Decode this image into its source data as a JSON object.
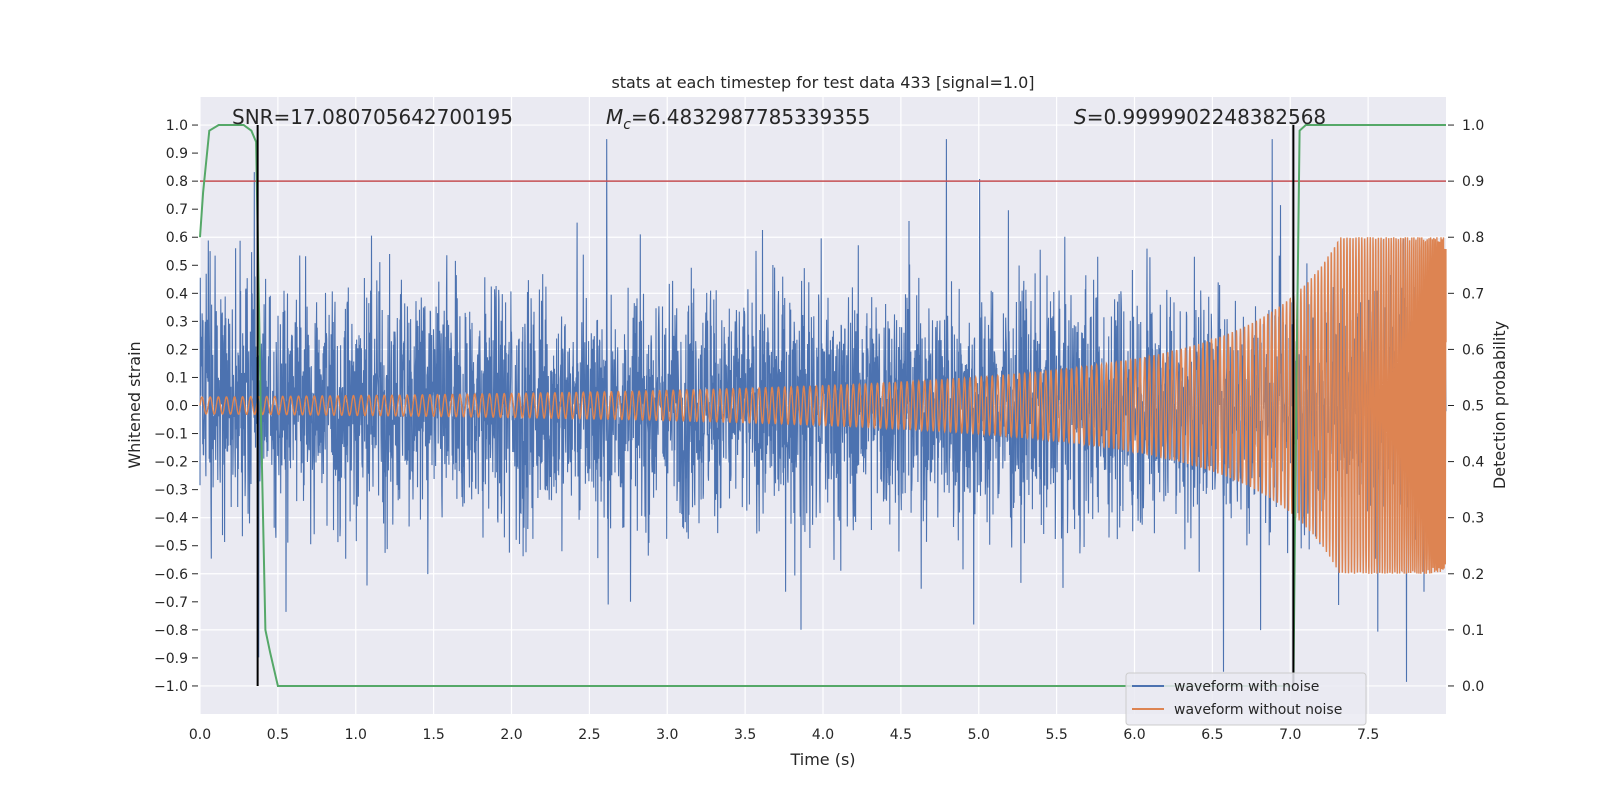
{
  "chart_data": {
    "type": "line",
    "title": "stats at each timestep for test data 433 [signal=1.0]",
    "xlabel": "Time (s)",
    "ylabel_left": "Whitened strain",
    "ylabel_right": "Detection probability",
    "xlim": [
      0.0,
      8.0
    ],
    "ylim_left": [
      -1.1,
      1.1
    ],
    "ylim_right": [
      -0.05,
      1.05
    ],
    "x_ticks": [
      "0.0",
      "0.5",
      "1.0",
      "1.5",
      "2.0",
      "2.5",
      "3.0",
      "3.5",
      "4.0",
      "4.5",
      "5.0",
      "5.5",
      "6.0",
      "6.5",
      "7.0",
      "7.5"
    ],
    "y_left_ticks": [
      "1.0",
      "0.9",
      "0.8",
      "0.7",
      "0.6",
      "0.5",
      "0.4",
      "0.3",
      "0.2",
      "0.1",
      "0.0",
      "−0.1",
      "−0.2",
      "−0.3",
      "−0.4",
      "−0.5",
      "−0.6",
      "−0.7",
      "−0.8",
      "−0.9",
      "−1.0"
    ],
    "y_right_ticks": [
      "1.0",
      "0.9",
      "0.8",
      "0.7",
      "0.6",
      "0.5",
      "0.4",
      "0.3",
      "0.2",
      "0.1",
      "0.0"
    ],
    "grid": true,
    "annotations": {
      "snr": "SNR=17.080705642700195",
      "mc": "=6.4832987785339355",
      "s": "=0.9999902248382568"
    },
    "threshold_probability": 0.9,
    "vertical_markers_s": [
      0.37,
      7.02
    ],
    "series": [
      {
        "name": "waveform with noise",
        "color": "#4c72b0",
        "axis": "left",
        "amplitude_range": [
          -1.0,
          0.95
        ],
        "typical_range": [
          -0.5,
          0.55
        ]
      },
      {
        "name": "waveform without noise",
        "color": "#dd8452",
        "axis": "left",
        "amplitude_start": 0.03,
        "amplitude_end": 0.6
      },
      {
        "name": "detection probability",
        "color": "#55a868",
        "axis": "right",
        "x": [
          0.0,
          0.02,
          0.06,
          0.12,
          0.2,
          0.28,
          0.33,
          0.36,
          0.39,
          0.42,
          0.45,
          0.5,
          0.6,
          1.0,
          2.0,
          4.0,
          6.0,
          6.7,
          6.95,
          7.0,
          7.02,
          7.04,
          7.06,
          7.1,
          7.2,
          8.0
        ],
        "values": [
          0.8,
          0.88,
          0.99,
          1.0,
          1.0,
          1.0,
          0.99,
          0.97,
          0.5,
          0.1,
          0.06,
          0.0,
          0.0,
          0.0,
          0.0,
          0.0,
          0.0,
          0.0,
          0.0,
          0.0,
          0.0,
          0.55,
          0.99,
          1.0,
          1.0,
          1.0
        ]
      }
    ],
    "threshold_color": "#c44e52",
    "marker_color": "#000000",
    "legend_position": "lower-right"
  }
}
